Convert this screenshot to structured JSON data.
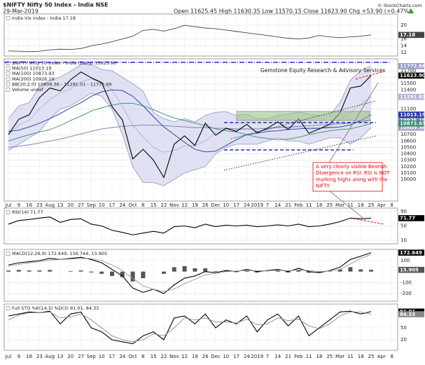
{
  "header": {
    "title": "$NIFTY Nifty 50 Index - India NSE",
    "date": "29-Mar-2019",
    "quote": "Open 11625.45 High 11630.35 Low 11570.15 Close 11623.90 Chg +53.90 (+0.47%)",
    "credit": "© StockCharts.com"
  },
  "chart_data": [
    {
      "type": "line",
      "legend": [
        "India Vix Index - India 17.18"
      ],
      "ylim": [
        11,
        23.3
      ],
      "yticks": [
        20,
        16,
        14,
        12
      ],
      "grid": true,
      "series": [
        {
          "color": "#444444",
          "flag": true,
          "values": [
            12.5,
            12.4,
            12.3,
            12.4,
            12.8,
            13.0,
            12.9,
            13.2,
            14.0,
            14.5,
            15.2,
            16.0,
            16.8,
            18.5,
            18.8,
            18.3,
            19.0,
            20.0,
            19.6,
            19.2,
            19.0,
            18.6,
            18.2,
            17.8,
            17.4,
            17.0,
            16.6,
            16.2,
            16.0,
            16.3,
            17.0,
            16.6,
            16.4,
            16.6,
            16.8,
            17.18,
            null,
            null
          ]
        }
      ]
    },
    {
      "type": "line",
      "legend": [
        "$NIFTY Nifty 50 Index - India (Daily) 11623.90",
        "MA(50) 11013.19",
        "MA(100) 10873.93",
        "MA(200) 10926.19",
        "BB(20,2.0) 10809.36 - 11291.01 - 11772.66",
        "Volume undef"
      ],
      "annotation": "Gemstone Equity Research & Advisory Services",
      "note": [
        "A very clearly visible Bearish",
        "Divergence on RSI. RSI is NOT",
        "marking highs along with the",
        "NIFTY"
      ],
      "categories": [
        "Jul",
        "9",
        "16",
        "23",
        "Aug",
        "13",
        "20",
        "27",
        "Sep",
        "10",
        "17",
        "24",
        "Oct",
        "8",
        "15",
        "22",
        "Nov",
        "12",
        "19",
        "26",
        "Dec",
        "10",
        "17",
        "24",
        "2019",
        "7",
        "14",
        "21",
        "Feb",
        "11",
        "18",
        "25",
        "Mar",
        "11",
        "18",
        "25",
        "Apr",
        "8"
      ],
      "ylim": [
        9660,
        11886
      ],
      "yticks": [
        11700,
        11600,
        11500,
        11400,
        11100,
        10700,
        10600,
        10500,
        10400,
        10300,
        10200,
        10100,
        10000
      ],
      "grid": true,
      "series": [
        {
          "color": "#9a9cc8",
          "fill": "#d6d8ef",
          "flag": true,
          "values": [
            10950,
            11150,
            11200,
            11450,
            11550,
            11600,
            11690,
            11800,
            11800,
            11720,
            11700,
            11600,
            11500,
            11380,
            11050,
            10950,
            10900,
            10950,
            10900,
            11000,
            11050,
            11060,
            11000,
            11020,
            10950,
            10950,
            11000,
            11020,
            11050,
            11020,
            11000,
            11000,
            11200,
            11550,
            11700,
            11772.66,
            null,
            null
          ]
        },
        {
          "color": "#b0b2d4",
          "flag": true,
          "values": [
            10700,
            10850,
            10925,
            11100,
            11250,
            11350,
            11420,
            11525,
            11575,
            11510,
            11400,
            11150,
            10850,
            10665,
            10500,
            10425,
            10450,
            10525,
            10525,
            10600,
            10725,
            10780,
            10775,
            10785,
            10750,
            10775,
            10825,
            10810,
            10825,
            10785,
            10800,
            10825,
            10925,
            11050,
            11175,
            11291.01,
            null,
            null
          ]
        },
        {
          "color": "#9a9cc8",
          "fill": "#d6d8ef",
          "flag": true,
          "values": [
            10450,
            10550,
            10650,
            10750,
            10950,
            11100,
            11150,
            11250,
            11350,
            11300,
            11100,
            10700,
            10200,
            9950,
            9950,
            9900,
            10000,
            10100,
            10150,
            10200,
            10400,
            10500,
            10550,
            10550,
            10550,
            10600,
            10650,
            10600,
            10600,
            10550,
            10600,
            10650,
            10650,
            10550,
            10650,
            10809.36,
            null,
            null
          ]
        },
        {
          "color": "#7f77b0",
          "flag": true,
          "values": [
            10500,
            10520,
            10540,
            10570,
            10600,
            10630,
            10670,
            10710,
            10750,
            10790,
            10810,
            10830,
            10840,
            10850,
            10850,
            10840,
            10830,
            10820,
            10810,
            10810,
            10800,
            10800,
            10790,
            10790,
            10790,
            10800,
            10810,
            10820,
            10830,
            10840,
            10850,
            10860,
            10870,
            10880,
            10900,
            10926.19,
            null,
            null
          ]
        },
        {
          "color": "#2f8f6f",
          "flag": true,
          "values": [
            10600,
            10650,
            10700,
            10740,
            10780,
            10840,
            10920,
            10990,
            11070,
            11120,
            11160,
            11190,
            11190,
            11150,
            11090,
            11020,
            10960,
            10920,
            10880,
            10840,
            10790,
            10760,
            10740,
            10700,
            10660,
            10640,
            10620,
            10630,
            10660,
            10700,
            10730,
            10760,
            10780,
            10790,
            10830,
            10873.93,
            null,
            null
          ]
        },
        {
          "color": "#2233aa",
          "flag": true,
          "values": [
            10750,
            10770,
            10820,
            10880,
            10950,
            11030,
            11120,
            11200,
            11300,
            11370,
            11400,
            11390,
            11300,
            11150,
            10980,
            10820,
            10700,
            10580,
            10470,
            10430,
            10440,
            10530,
            10620,
            10700,
            10720,
            10750,
            10760,
            10780,
            10790,
            10800,
            10800,
            10810,
            10820,
            10850,
            10920,
            11013.19,
            null,
            null
          ]
        },
        {
          "color": "#000000",
          "flag": true,
          "values": [
            10700,
            10940,
            11010,
            11280,
            11430,
            11385,
            11560,
            11680,
            11590,
            11515,
            11140,
            10930,
            10320,
            10470,
            10300,
            10030,
            10550,
            10680,
            10530,
            10880,
            10690,
            10800,
            10750,
            10860,
            10730,
            10800,
            10900,
            10780,
            10950,
            10720,
            10790,
            10860,
            11040,
            11430,
            11460,
            11623.9,
            null,
            null
          ],
          "value_labels": [
            null,
            null,
            null,
            null,
            null,
            null,
            null,
            null,
            null,
            null,
            null,
            null,
            null,
            null,
            null,
            null,
            null,
            null,
            null,
            null,
            null,
            null,
            null,
            null,
            null,
            null,
            null,
            null,
            null,
            null,
            null,
            null,
            null,
            null,
            null,
            "11623.90",
            null,
            null
          ]
        }
      ]
    },
    {
      "type": "line",
      "legend": [
        "RSI(14) 71.77"
      ],
      "ylim": [
        0,
        100
      ],
      "yticks": [
        90,
        50,
        10
      ],
      "grid": true,
      "series": [
        {
          "color": "#000000",
          "flag": true,
          "values": [
            55,
            65,
            68,
            72,
            75,
            60,
            68,
            70,
            55,
            50,
            38,
            32,
            25,
            30,
            35,
            30,
            48,
            50,
            45,
            55,
            48,
            52,
            50,
            52,
            48,
            50,
            53,
            50,
            55,
            48,
            50,
            55,
            62,
            72,
            70,
            71.77,
            null,
            null
          ]
        }
      ]
    },
    {
      "type": "line",
      "legend": [
        "MACD(12,26,9) 172.649, 156.744, 15.905"
      ],
      "ylim": [
        -270,
        202
      ],
      "yticks": [
        100,
        -100,
        -200
      ],
      "grid": true,
      "series": [
        {
          "type": "bar",
          "color": "#555555",
          "flag": true,
          "values": [
            10,
            15,
            10,
            10,
            15,
            0,
            5,
            10,
            -8,
            -20,
            -40,
            -50,
            -90,
            -60,
            0,
            -20,
            40,
            50,
            30,
            30,
            5,
            10,
            -5,
            10,
            -8,
            2,
            8,
            -8,
            15,
            -10,
            -10,
            5,
            20,
            40,
            20,
            15.905,
            null,
            null
          ]
        },
        {
          "color": "#000000",
          "flag": true,
          "values": [
            60,
            80,
            90,
            100,
            120,
            110,
            120,
            130,
            110,
            80,
            20,
            -40,
            -150,
            -190,
            -160,
            -200,
            -120,
            -60,
            -40,
            0,
            -10,
            10,
            0,
            20,
            0,
            10,
            20,
            0,
            30,
            0,
            -10,
            10,
            40,
            110,
            140,
            172.649,
            null,
            null
          ]
        },
        {
          "color": "#999999",
          "flag": false,
          "values": [
            50,
            65,
            80,
            90,
            105,
            110,
            115,
            120,
            118,
            100,
            60,
            10,
            -60,
            -130,
            -160,
            -180,
            -160,
            -110,
            -70,
            -30,
            -15,
            0,
            5,
            10,
            8,
            8,
            12,
            8,
            15,
            10,
            0,
            5,
            20,
            70,
            120,
            156.744,
            null,
            null
          ]
        }
      ]
    },
    {
      "type": "line",
      "legend": [
        "Full STO %K(14,3) %D(3) 91.01, 84.33"
      ],
      "ylim": [
        -6.5,
        110
      ],
      "yticks": [
        50,
        20
      ],
      "grid": true,
      "series": [
        {
          "color": "#000000",
          "flag": true,
          "values": [
            80,
            85,
            90,
            88,
            92,
            60,
            85,
            90,
            50,
            40,
            20,
            15,
            10,
            30,
            40,
            20,
            75,
            80,
            60,
            85,
            50,
            70,
            60,
            80,
            40,
            70,
            85,
            55,
            80,
            30,
            50,
            70,
            90,
            92,
            85,
            91.01,
            null,
            null
          ]
        },
        {
          "color": "#888888",
          "flag": true,
          "values": [
            70,
            82,
            88,
            88,
            90,
            75,
            78,
            85,
            70,
            50,
            30,
            20,
            15,
            20,
            35,
            30,
            50,
            75,
            70,
            75,
            65,
            65,
            62,
            72,
            58,
            60,
            75,
            68,
            72,
            55,
            48,
            60,
            80,
            90,
            90,
            84.33,
            null,
            null
          ]
        }
      ]
    }
  ]
}
